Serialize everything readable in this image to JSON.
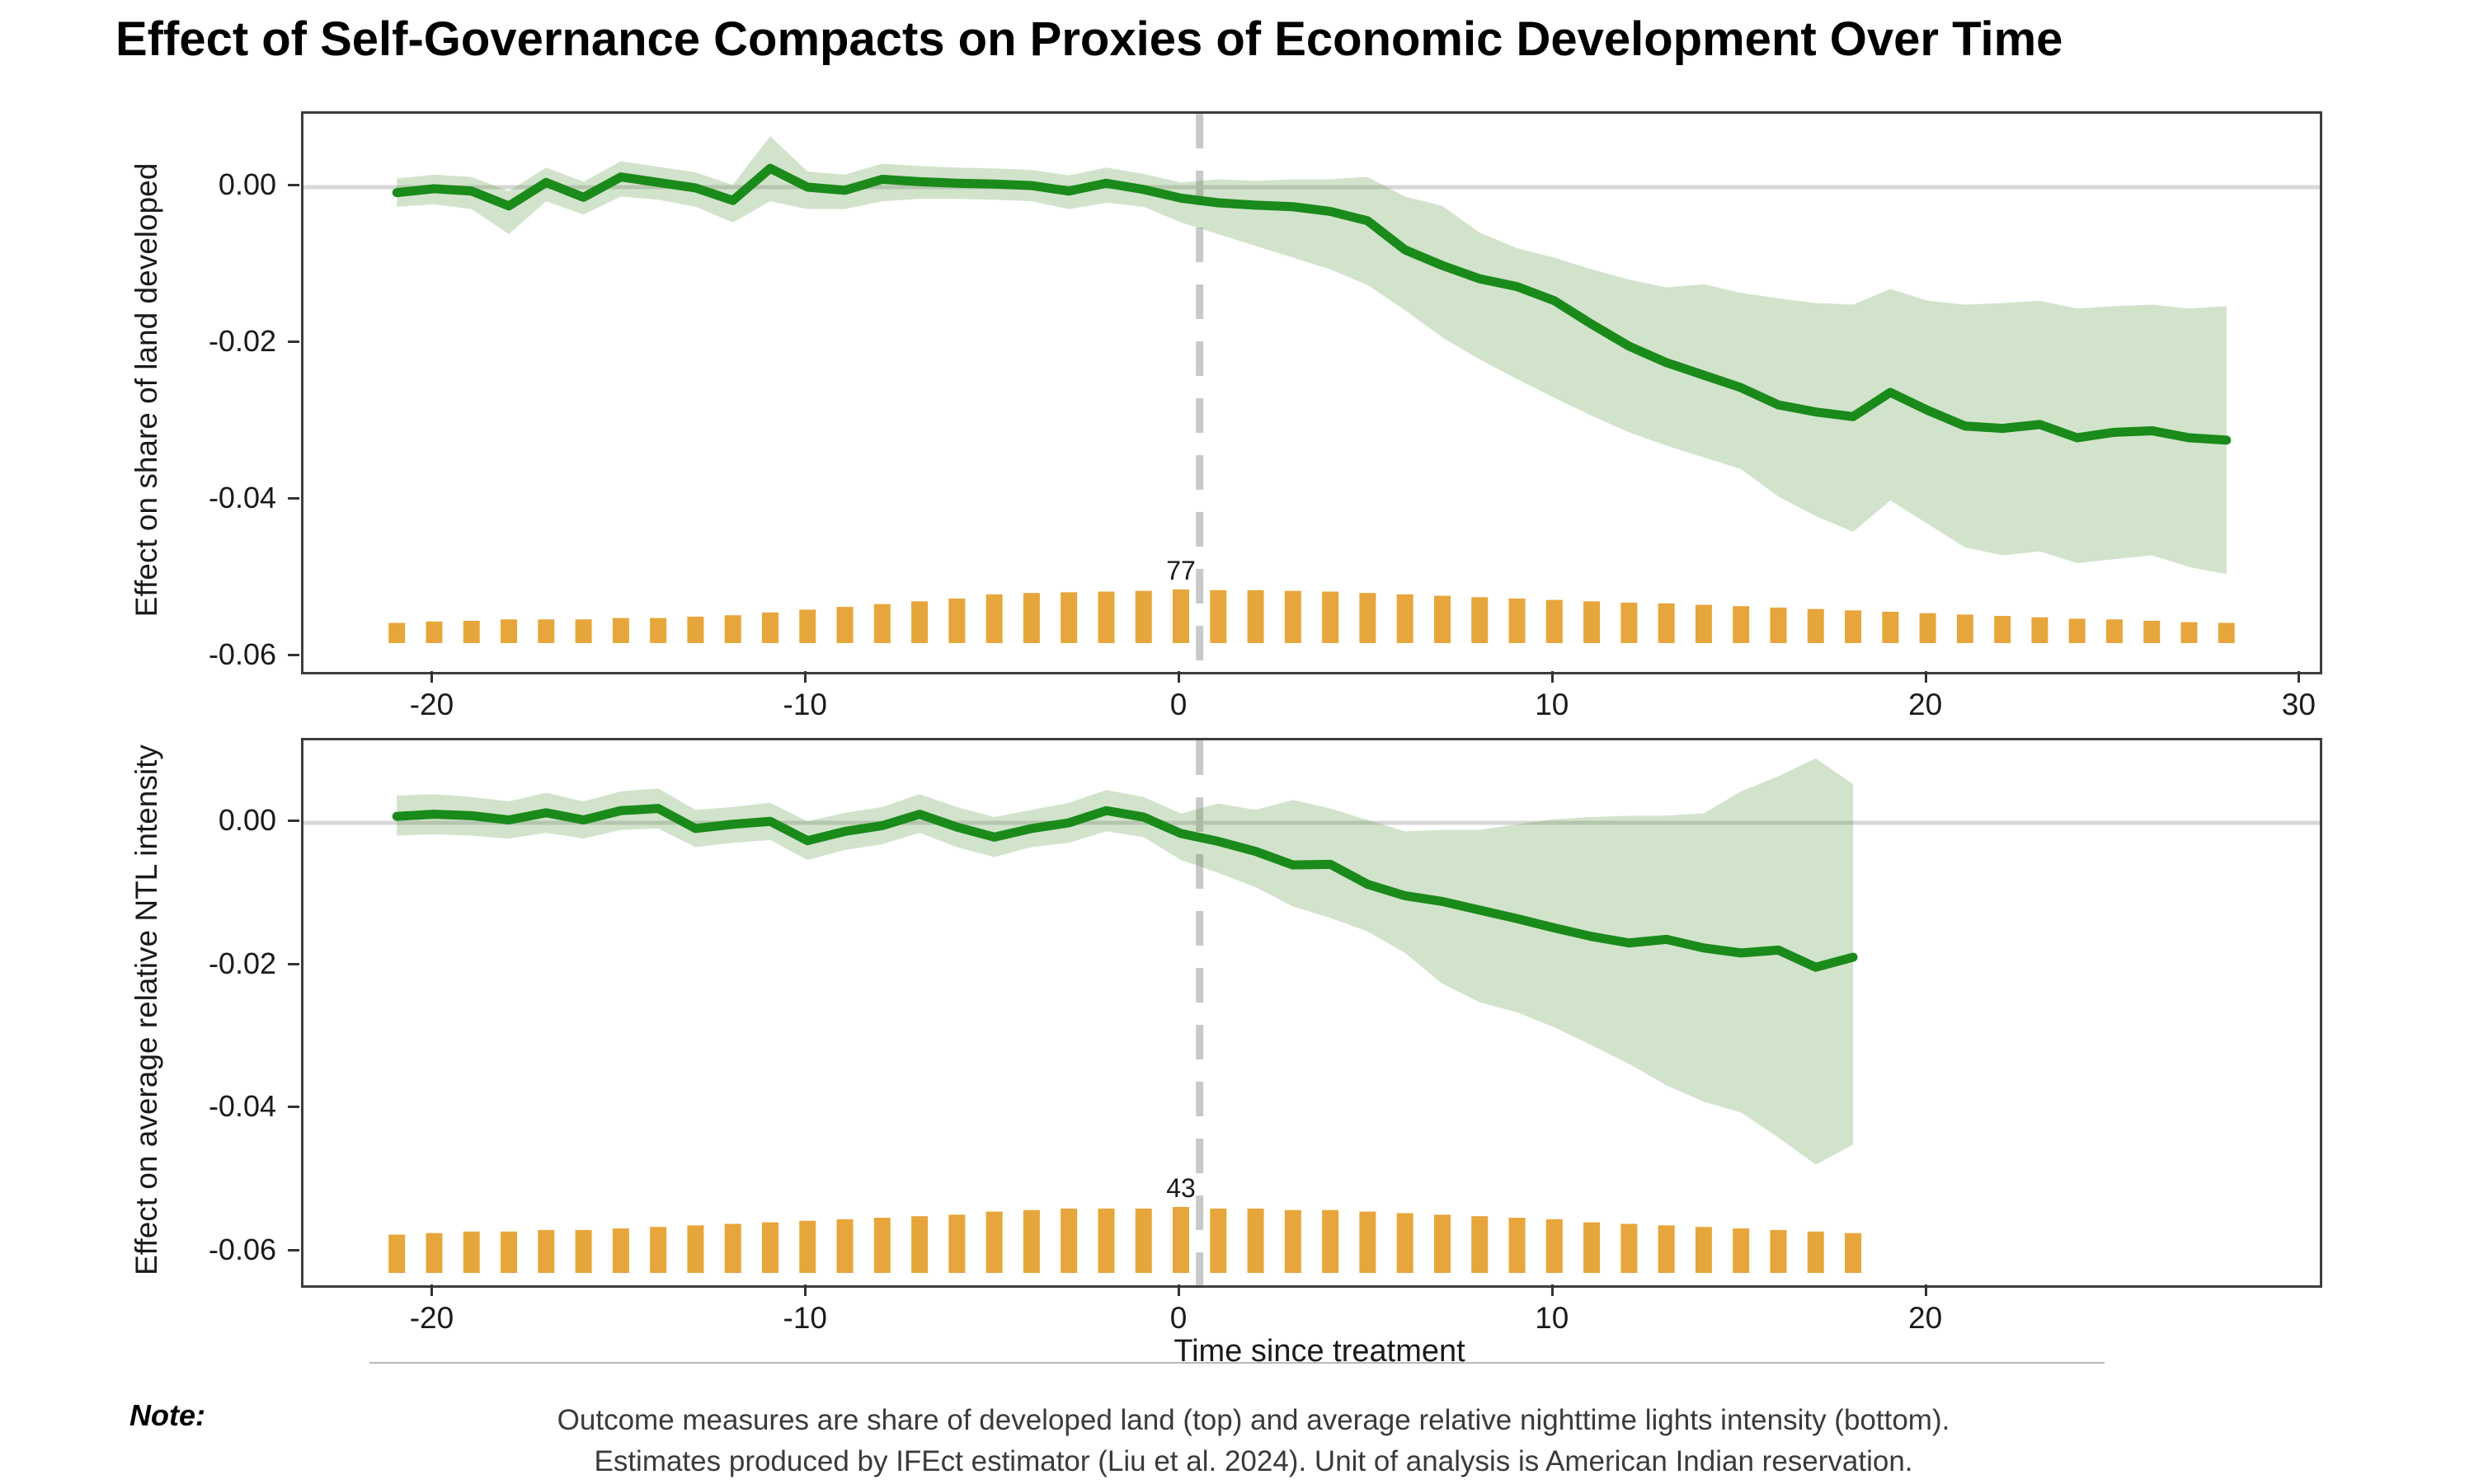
{
  "title": "Effect of Self-Governance Compacts on Proxies of Economic Development Over Time",
  "x_axis_title": "Time since treatment",
  "note": {
    "label": "Note:",
    "line1": "Outcome measures are share of developed land (top) and average relative nighttime lights intensity (bottom).",
    "line2": "Estimates produced by IFEct estimator (Liu et al. 2024). Unit of analysis is American Indian reservation."
  },
  "colors": {
    "estimate_line": "#1a8a1a",
    "confidence_band": "rgba(88,150,66,0.27)",
    "count_bars": "#e7a63c",
    "zero_line": "#d7d7d7",
    "treatment_vline": "#c9c9c9",
    "panel_border": "#3d3d3d",
    "axis_text": "#1a1a1a",
    "note_text": "#3a3a3a"
  },
  "chart_data": [
    {
      "type": "line",
      "panel": "top",
      "ylabel": "Effect on share of land developed",
      "xlabel": "Time since treatment",
      "xlim": [
        -23.5,
        30.5
      ],
      "ylim": [
        -0.0619,
        0.0094
      ],
      "yticks": [
        0,
        -0.02,
        -0.04,
        -0.06
      ],
      "xticks": [
        -20,
        -10,
        0,
        10,
        20,
        30
      ],
      "vline_x": 0.5,
      "hline_y": 0,
      "legend": "none",
      "grid": "off",
      "bar_max_count": 77,
      "bar_label": {
        "x": 0,
        "text": "77"
      },
      "x": [
        -21,
        -20,
        -19,
        -18,
        -17,
        -16,
        -15,
        -14,
        -13,
        -12,
        -11,
        -10,
        -9,
        -8,
        -7,
        -6,
        -5,
        -4,
        -3,
        -2,
        -1,
        0,
        1,
        2,
        3,
        4,
        5,
        6,
        7,
        8,
        9,
        10,
        11,
        12,
        13,
        14,
        15,
        16,
        17,
        18,
        19,
        20,
        21,
        22,
        23,
        24,
        25,
        26,
        27,
        28
      ],
      "series": [
        {
          "name": "estimate",
          "values": [
            -0.0007,
            -0.0002,
            -0.0005,
            -0.0024,
            0.0006,
            -0.0013,
            0.0013,
            0.0006,
            -0.0001,
            -0.0017,
            0.0024,
            0.0,
            -0.0004,
            0.001,
            0.0007,
            0.0005,
            0.0004,
            0.0002,
            -0.0005,
            0.0005,
            -0.0003,
            -0.0014,
            -0.002,
            -0.0023,
            -0.0025,
            -0.0031,
            -0.0043,
            -0.008,
            -0.01,
            -0.0117,
            -0.0127,
            -0.0145,
            -0.0175,
            -0.0203,
            -0.0224,
            -0.024,
            -0.0256,
            -0.0278,
            -0.0287,
            -0.0293,
            -0.0262,
            -0.0285,
            -0.0305,
            -0.0308,
            -0.0303,
            -0.032,
            -0.0313,
            -0.0311,
            -0.032,
            -0.0323
          ]
        },
        {
          "name": "ci_upper",
          "values": [
            0.0011,
            0.0016,
            0.0013,
            -0.0005,
            0.0025,
            0.0007,
            0.0033,
            0.0026,
            0.0019,
            0.0003,
            0.0065,
            0.002,
            0.0016,
            0.003,
            0.0027,
            0.0025,
            0.0024,
            0.0022,
            0.0015,
            0.0025,
            0.0017,
            0.0006,
            0.001,
            0.0008,
            0.001,
            0.001,
            0.0013,
            -0.0012,
            -0.0024,
            -0.0058,
            -0.0078,
            -0.009,
            -0.0105,
            -0.0118,
            -0.0128,
            -0.0124,
            -0.0135,
            -0.0142,
            -0.0148,
            -0.015,
            -0.013,
            -0.0145,
            -0.015,
            -0.0148,
            -0.0145,
            -0.0155,
            -0.0152,
            -0.015,
            -0.0155,
            -0.0152
          ]
        },
        {
          "name": "ci_lower",
          "values": [
            -0.0025,
            -0.0022,
            -0.0028,
            -0.006,
            -0.0018,
            -0.0035,
            -0.0012,
            -0.0016,
            -0.0025,
            -0.0045,
            -0.0018,
            -0.0028,
            -0.0028,
            -0.0018,
            -0.0015,
            -0.0015,
            -0.0016,
            -0.0018,
            -0.0028,
            -0.002,
            -0.0025,
            -0.0045,
            -0.006,
            -0.0075,
            -0.009,
            -0.0105,
            -0.0125,
            -0.0157,
            -0.0192,
            -0.022,
            -0.0245,
            -0.0269,
            -0.0292,
            -0.0313,
            -0.033,
            -0.0345,
            -0.036,
            -0.0395,
            -0.042,
            -0.044,
            -0.04,
            -0.043,
            -0.046,
            -0.047,
            -0.0465,
            -0.048,
            -0.0475,
            -0.047,
            -0.0485,
            -0.0494
          ]
        },
        {
          "name": "n_treated_count_bars",
          "values": [
            29,
            31,
            32,
            34,
            34,
            34,
            36,
            36,
            38,
            40,
            44,
            48,
            52,
            56,
            60,
            64,
            70,
            72,
            73,
            74,
            75,
            77,
            76,
            76,
            75,
            74,
            72,
            70,
            68,
            66,
            64,
            62,
            60,
            58,
            57,
            55,
            53,
            51,
            49,
            47,
            45,
            43,
            41,
            39,
            37,
            35,
            34,
            32,
            30,
            29
          ]
        }
      ]
    },
    {
      "type": "line",
      "panel": "bottom",
      "ylabel": "Effect on average relative NTL intensity",
      "xlabel": "Time since treatment",
      "xlim": [
        -23.5,
        30.5
      ],
      "ylim": [
        -0.0647,
        0.0115
      ],
      "yticks": [
        0,
        -0.02,
        -0.04,
        -0.06
      ],
      "xticks": [
        -20,
        -10,
        0,
        10,
        20
      ],
      "vline_x": 0.5,
      "hline_y": 0,
      "legend": "none",
      "grid": "off",
      "bar_max_count": 43,
      "bar_label": {
        "x": 0,
        "text": "43"
      },
      "x": [
        -21,
        -20,
        -19,
        -18,
        -17,
        -16,
        -15,
        -14,
        -13,
        -12,
        -11,
        -10,
        -9,
        -8,
        -7,
        -6,
        -5,
        -4,
        -3,
        -2,
        -1,
        0,
        1,
        2,
        3,
        4,
        5,
        6,
        7,
        8,
        9,
        10,
        11,
        12,
        13,
        14,
        15,
        16,
        17,
        18
      ],
      "series": [
        {
          "name": "estimate",
          "values": [
            0.0009,
            0.0012,
            0.001,
            0.0004,
            0.0014,
            0.0004,
            0.0017,
            0.002,
            -0.0008,
            -0.0002,
            0.0002,
            -0.0025,
            -0.0012,
            -0.0004,
            0.0012,
            -0.0006,
            -0.002,
            -0.0008,
            0.0,
            0.0017,
            0.0008,
            -0.0015,
            -0.0026,
            -0.004,
            -0.0059,
            -0.0058,
            -0.0086,
            -0.0102,
            -0.011,
            -0.0122,
            -0.0134,
            -0.0147,
            -0.0159,
            -0.0168,
            -0.0163,
            -0.0175,
            -0.0182,
            -0.0178,
            -0.0202,
            -0.0188
          ]
        },
        {
          "name": "ci_upper",
          "values": [
            0.0038,
            0.004,
            0.0036,
            0.003,
            0.0042,
            0.003,
            0.0044,
            0.0048,
            0.0018,
            0.0022,
            0.0028,
            0.0002,
            0.0014,
            0.0022,
            0.004,
            0.0022,
            0.0008,
            0.0018,
            0.0028,
            0.0046,
            0.0036,
            0.0013,
            0.0027,
            0.0018,
            0.0032,
            0.002,
            0.0004,
            -0.0012,
            -0.001,
            -0.001,
            -0.0002,
            0.0005,
            0.0008,
            0.001,
            0.001,
            0.0013,
            0.0044,
            0.0065,
            0.009,
            0.0054
          ]
        },
        {
          "name": "ci_lower",
          "values": [
            -0.0018,
            -0.0016,
            -0.0018,
            -0.0022,
            -0.0014,
            -0.0022,
            -0.001,
            -0.0008,
            -0.0034,
            -0.0028,
            -0.0024,
            -0.0052,
            -0.0038,
            -0.003,
            -0.0014,
            -0.0034,
            -0.0048,
            -0.0034,
            -0.0028,
            -0.0012,
            -0.002,
            -0.0052,
            -0.007,
            -0.009,
            -0.0117,
            -0.0133,
            -0.0152,
            -0.0182,
            -0.0225,
            -0.0251,
            -0.0265,
            -0.0286,
            -0.0311,
            -0.0337,
            -0.0367,
            -0.039,
            -0.0405,
            -0.044,
            -0.0478,
            -0.045
          ]
        },
        {
          "name": "n_treated_count_bars",
          "values": [
            25,
            26,
            27,
            27,
            28,
            28,
            29,
            30,
            31,
            32,
            33,
            34,
            35,
            36,
            37,
            38,
            40,
            41,
            42,
            42,
            42,
            43,
            42,
            42,
            41,
            41,
            40,
            39,
            38,
            37,
            36,
            35,
            33,
            32,
            31,
            30,
            29,
            28,
            27,
            26
          ]
        }
      ]
    }
  ]
}
